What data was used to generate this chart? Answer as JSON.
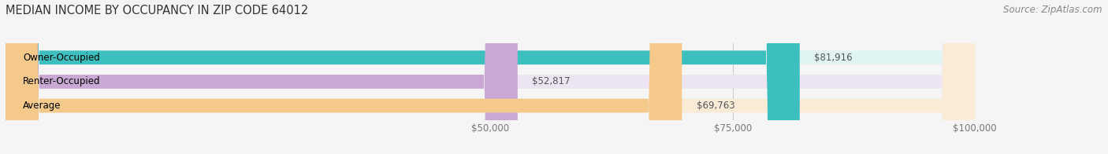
{
  "title": "MEDIAN INCOME BY OCCUPANCY IN ZIP CODE 64012",
  "source": "Source: ZipAtlas.com",
  "categories": [
    "Owner-Occupied",
    "Renter-Occupied",
    "Average"
  ],
  "values": [
    81916,
    52817,
    69763
  ],
  "bar_colors": [
    "#3dbfbf",
    "#c9a8d4",
    "#f5c98a"
  ],
  "bar_background_colors": [
    "#e0f4f4",
    "#ede4f3",
    "#faebd7"
  ],
  "value_labels": [
    "$81,916",
    "$52,817",
    "$69,763"
  ],
  "xlim": [
    0,
    100000
  ],
  "xticks": [
    50000,
    75000,
    100000
  ],
  "xticklabels": [
    "$50,000",
    "$75,000",
    "$100,000"
  ],
  "bar_height": 0.58,
  "background_color": "#f5f5f5",
  "title_fontsize": 10.5,
  "source_fontsize": 8.5,
  "label_fontsize": 8.5,
  "tick_fontsize": 8.5
}
